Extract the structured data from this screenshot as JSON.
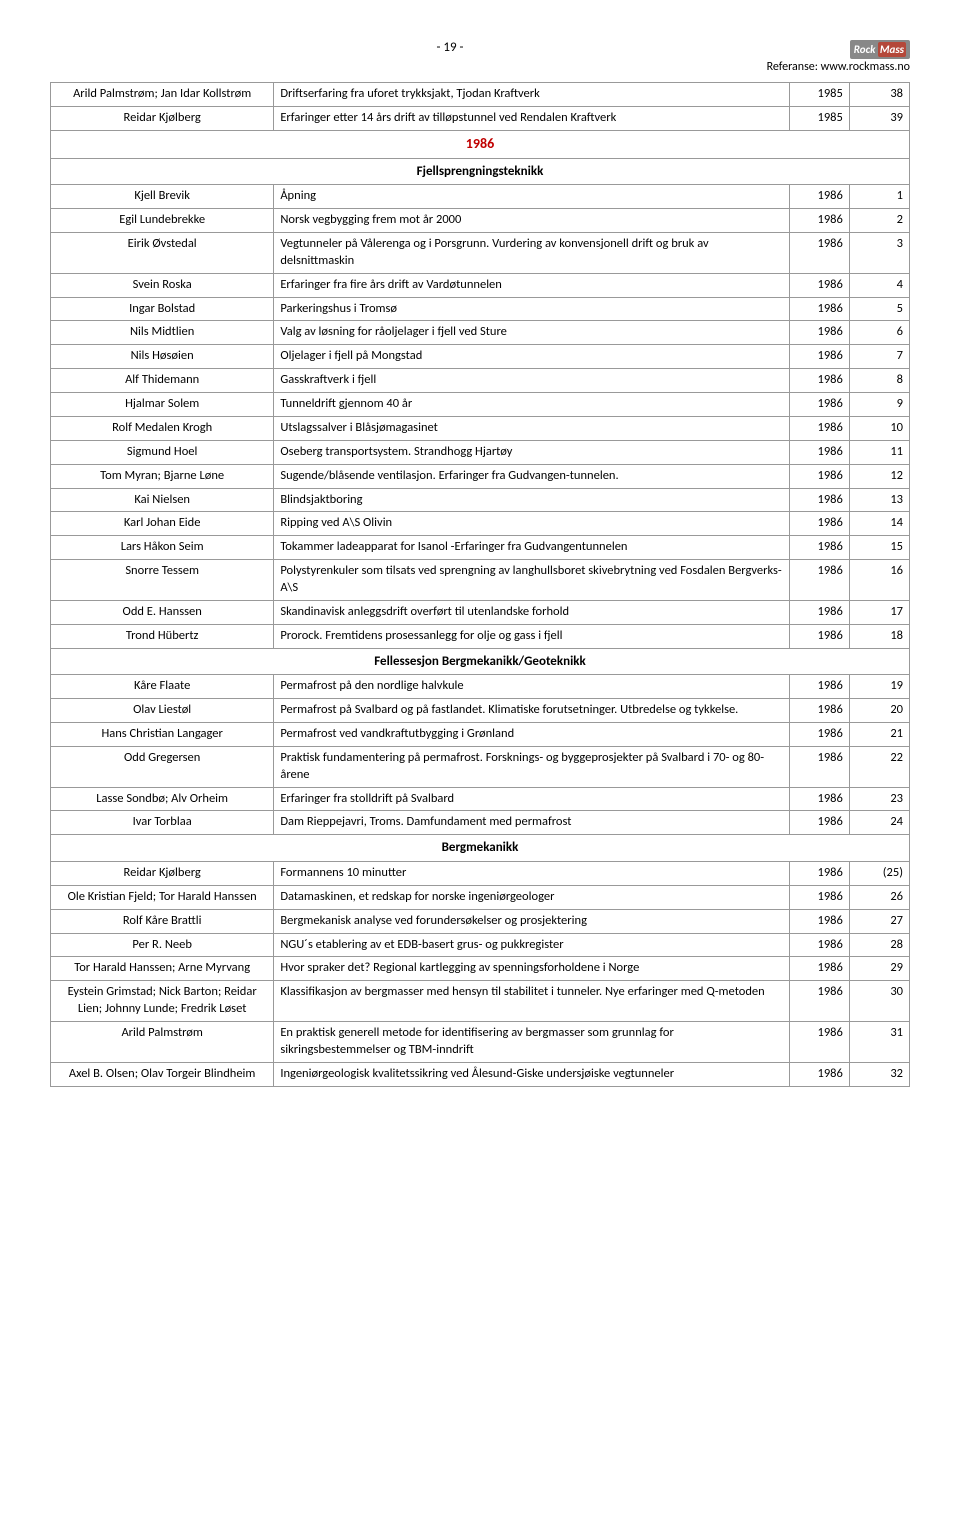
{
  "page_header": {
    "page_num": "- 19 -",
    "referanse": "Referanse: www.rockmass.no",
    "logo_rock": "Rock",
    "logo_mass": "Mass"
  },
  "table": {
    "colors": {
      "year_section": "#c00000",
      "border": "#999999"
    },
    "rows": [
      {
        "author": "Arild Palmstrøm; Jan Idar Kollstrøm",
        "title": "Driftserfaring fra uforet trykksjakt, Tjodan Kraftverk",
        "year": "1985",
        "page": "38"
      },
      {
        "author": "Reidar Kjølberg",
        "title": "Erfaringer etter 14 års drift av tilløpstunnel ved Rendalen Kraftverk",
        "year": "1985",
        "page": "39"
      },
      {
        "section_year": "1986"
      },
      {
        "section_name": "Fjellsprengningsteknikk"
      },
      {
        "author": "Kjell Brevik",
        "title": "Åpning",
        "year": "1986",
        "page": "1"
      },
      {
        "author": "Egil Lundebrekke",
        "title": "Norsk vegbygging frem mot år 2000",
        "year": "1986",
        "page": "2"
      },
      {
        "author": "Eirik Øvstedal",
        "title": "Vegtunneler på Vålerenga og i Porsgrunn. Vurdering av konvensjonell drift og bruk av delsnittmaskin",
        "year": "1986",
        "page": "3"
      },
      {
        "author": "Svein Roska",
        "title": "Erfaringer fra fire års drift av Vardøtunnelen",
        "year": "1986",
        "page": "4"
      },
      {
        "author": "Ingar Bolstad",
        "title": "Parkeringshus i Tromsø",
        "year": "1986",
        "page": "5"
      },
      {
        "author": "Nils Midtlien",
        "title": "Valg av løsning for råoljelager i fjell ved Sture",
        "year": "1986",
        "page": "6"
      },
      {
        "author": "Nils Høsøien",
        "title": "Oljelager i fjell på Mongstad",
        "year": "1986",
        "page": "7"
      },
      {
        "author": "Alf Thidemann",
        "title": "Gasskraftverk i fjell",
        "year": "1986",
        "page": "8"
      },
      {
        "author": "Hjalmar Solem",
        "title": "Tunneldrift gjennom 40 år",
        "year": "1986",
        "page": "9"
      },
      {
        "author": "Rolf Medalen Krogh",
        "title": "Utslagssalver i Blåsjømagasinet",
        "year": "1986",
        "page": "10"
      },
      {
        "author": "Sigmund Hoel",
        "title": "Oseberg transportsystem. Strandhogg Hjartøy",
        "year": "1986",
        "page": "11"
      },
      {
        "author": "Tom Myran; Bjarne Løne",
        "title": "Sugende/blåsende ventilasjon. Erfaringer fra Gudvangen-tunnelen.",
        "year": "1986",
        "page": "12"
      },
      {
        "author": "Kai Nielsen",
        "title": "Blindsjaktboring",
        "year": "1986",
        "page": "13"
      },
      {
        "author": "Karl Johan Eide",
        "title": "Ripping ved A\\S Olivin",
        "year": "1986",
        "page": "14"
      },
      {
        "author": "Lars Håkon Seim",
        "title": "Tokammer ladeapparat for Isanol -Erfaringer fra Gudvangentunnelen",
        "year": "1986",
        "page": "15"
      },
      {
        "author": "Snorre Tessem",
        "title": "Polystyrenkuler som tilsats ved sprengning av  langhullsboret skivebrytning ved Fosdalen Bergverks- A\\S",
        "year": "1986",
        "page": "16"
      },
      {
        "author": "Odd E. Hanssen",
        "title": "Skandinavisk anleggsdrift overført til utenlandske forhold",
        "year": "1986",
        "page": "17"
      },
      {
        "author": "Trond Hübertz",
        "title": "Prorock. Fremtidens prosessanlegg for olje og gass i fjell",
        "year": "1986",
        "page": "18"
      },
      {
        "section_name": "Fellessesjon Bergmekanikk/Geoteknikk"
      },
      {
        "author": "Kåre Flaate",
        "title": "Permafrost på den nordlige halvkule",
        "year": "1986",
        "page": "19"
      },
      {
        "author": "Olav Liestøl",
        "title": "Permafrost på Svalbard og på fastlandet. Klimatiske forutsetninger. Utbredelse og tykkelse.",
        "year": "1986",
        "page": "20"
      },
      {
        "author": "Hans Christian Langager",
        "title": "Permafrost ved vandkraftutbygging i Grønland",
        "year": "1986",
        "page": "21"
      },
      {
        "author": "Odd Gregersen",
        "title": "Praktisk fundamentering på permafrost. Forsknings- og byggeprosjekter på Svalbard i 70- og 80-årene",
        "year": "1986",
        "page": "22"
      },
      {
        "author": "Lasse Sondbø; Alv Orheim",
        "title": "Erfaringer fra stolldrift på Svalbard",
        "year": "1986",
        "page": "23"
      },
      {
        "author": "Ivar Torblaa",
        "title": "Dam Rieppejavri, Troms. Damfundament med permafrost",
        "year": "1986",
        "page": "24"
      },
      {
        "section_name": "Bergmekanikk"
      },
      {
        "author": "Reidar Kjølberg",
        "title": "Formannens 10 minutter",
        "year": "1986",
        "page": "(25)"
      },
      {
        "author": "Ole Kristian Fjeld; Tor Harald Hanssen",
        "title": "Datamaskinen, et redskap for norske ingeniørgeologer",
        "year": "1986",
        "page": "26"
      },
      {
        "author": "Rolf Kåre Brattli",
        "title": "Bergmekanisk analyse ved forundersøkelser og prosjektering",
        "year": "1986",
        "page": "27"
      },
      {
        "author": "Per R. Neeb",
        "title": "NGU´s etablering av et EDB-basert grus- og pukkregister",
        "year": "1986",
        "page": "28"
      },
      {
        "author": "Tor Harald Hanssen; Arne Myrvang",
        "title": "Hvor spraker det? Regional kartlegging av spenningsforholdene i Norge",
        "year": "1986",
        "page": "29"
      },
      {
        "author": "Eystein Grimstad; Nick Barton; Reidar Lien; Johnny Lunde; Fredrik Løset",
        "title": "Klassifikasjon av bergmasser med hensyn til stabilitet i tunneler. Nye erfaringer med Q-metoden",
        "year": "1986",
        "page": "30"
      },
      {
        "author": "Arild Palmstrøm",
        "title": "En praktisk generell metode for identifisering av bergmasser som grunnlag for sikringsbestemmelser og TBM-inndrift",
        "year": "1986",
        "page": "31"
      },
      {
        "author": "Axel B. Olsen; Olav Torgeir Blindheim",
        "title": "Ingeniørgeologisk kvalitetssikring ved Ålesund-Giske undersjøiske vegtunneler",
        "year": "1986",
        "page": "32"
      }
    ]
  }
}
